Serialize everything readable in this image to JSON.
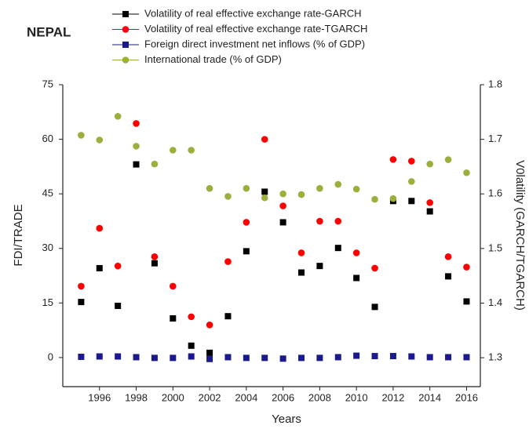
{
  "chart_data": {
    "type": "line",
    "title": "NEPAL",
    "x_label": "Years",
    "y_label": "FDI/TRADE",
    "y2_label": "V0latility (GARCH/TGARCH)",
    "x": [
      1995,
      1996,
      1997,
      1998,
      1999,
      2000,
      2001,
      2002,
      2003,
      2004,
      2005,
      2006,
      2007,
      2008,
      2009,
      2010,
      2011,
      2012,
      2013,
      2014,
      2015,
      2016
    ],
    "xlim": [
      1994,
      2016.75
    ],
    "xticks": [
      1996,
      1998,
      2000,
      2002,
      2004,
      2006,
      2008,
      2010,
      2012,
      2014,
      2016
    ],
    "ylim": [
      -8,
      75
    ],
    "yticks": [
      0,
      15,
      30,
      45,
      60,
      75
    ],
    "y2lim": [
      1.247,
      1.8
    ],
    "y2ticks": [
      1.3,
      1.4,
      1.5,
      1.6,
      1.7,
      1.8
    ],
    "series": [
      {
        "name": "Volatility of real effective exchange rate-GARCH",
        "color": "#000000",
        "marker": "square",
        "axis": "y2",
        "values": [
          1.402,
          1.464,
          1.395,
          1.654,
          1.473,
          1.372,
          1.322,
          1.309,
          1.376,
          1.495,
          1.604,
          1.548,
          1.456,
          1.468,
          1.501,
          1.446,
          1.393,
          1.587,
          1.587,
          1.568,
          1.449,
          1.403
        ]
      },
      {
        "name": "Volatility of real effective exchange rate-TGARCH",
        "color": "#ff0000",
        "marker": "circle",
        "axis": "y2",
        "values": [
          1.431,
          1.537,
          1.468,
          1.729,
          1.485,
          1.431,
          1.375,
          1.36,
          1.476,
          1.548,
          1.7,
          1.578,
          1.492,
          1.55,
          1.55,
          1.492,
          1.464,
          1.663,
          1.66,
          1.584,
          1.485,
          1.466
        ]
      },
      {
        "name": "Foreign direct investment net inflows (% of GDP)",
        "color": "#1a1a8c",
        "marker": "square",
        "values": [
          0.2,
          0.3,
          0.3,
          0.1,
          -0.1,
          -0.1,
          0.3,
          -0.4,
          0.1,
          -0.1,
          -0.1,
          -0.3,
          -0.1,
          -0.1,
          0.1,
          0.5,
          0.4,
          0.4,
          0.3,
          0.1,
          0.1,
          0.1
        ]
      },
      {
        "name": "International trade (% of GDP)",
        "color": "#9aaf3c",
        "marker": "circle",
        "values": [
          61.1,
          59.8,
          66.3,
          58.1,
          53.2,
          57.0,
          57.0,
          46.5,
          44.3,
          46.5,
          43.9,
          45.0,
          44.8,
          46.5,
          47.6,
          46.3,
          43.5,
          43.7,
          48.4,
          53.2,
          54.4,
          50.8
        ]
      }
    ]
  }
}
